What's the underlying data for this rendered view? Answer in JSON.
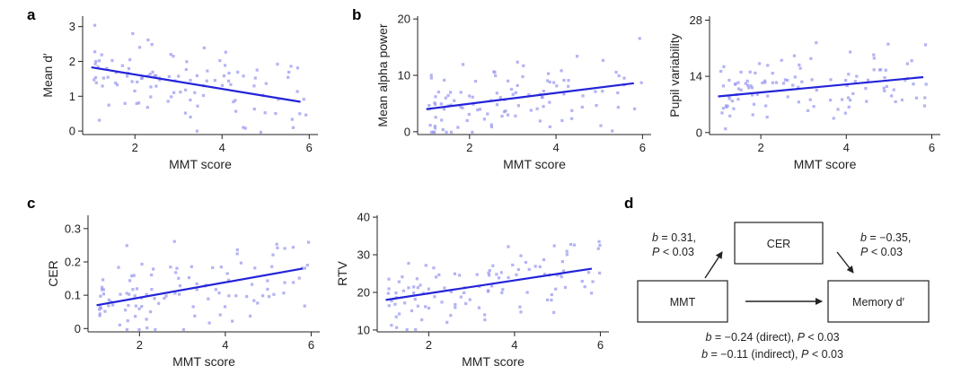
{
  "panel_letters": {
    "a": "a",
    "b": "b",
    "c": "c",
    "d": "d"
  },
  "chart_data": [
    {
      "id": "mean-d",
      "type": "scatter",
      "panel": "a",
      "xlabel": "MMT score",
      "ylabel": "Mean d′",
      "xlim": [
        0.8,
        6.2
      ],
      "ylim": [
        -0.1,
        3.3
      ],
      "xticks": [
        2,
        4,
        6
      ],
      "yticks": [
        0,
        1,
        2,
        3
      ],
      "regression": {
        "x": [
          1.0,
          5.8
        ],
        "y": [
          1.83,
          0.84
        ]
      },
      "n_points": 110,
      "seed": 11,
      "noise": 0.55
    },
    {
      "id": "alpha-power",
      "type": "scatter",
      "panel": "b",
      "xlabel": "MMT score",
      "ylabel": "Mean alpha power",
      "xlim": [
        0.8,
        6.2
      ],
      "ylim": [
        -0.5,
        20.5
      ],
      "xticks": [
        2,
        4,
        6
      ],
      "yticks": [
        0,
        10,
        20
      ],
      "regression": {
        "x": [
          1.0,
          5.8
        ],
        "y": [
          4.0,
          8.6
        ]
      },
      "n_points": 110,
      "seed": 23,
      "noise": 3.6
    },
    {
      "id": "pupil-variability",
      "type": "scatter",
      "panel": "b",
      "xlabel": "MMT score",
      "ylabel": "Pupil variability",
      "xlim": [
        0.8,
        6.2
      ],
      "ylim": [
        -0.5,
        29
      ],
      "xticks": [
        2,
        4,
        6
      ],
      "yticks": [
        0,
        14,
        28
      ],
      "regression": {
        "x": [
          1.0,
          5.8
        ],
        "y": [
          9.0,
          13.8
        ]
      },
      "n_points": 110,
      "seed": 37,
      "noise": 4.0
    },
    {
      "id": "cer",
      "type": "scatter",
      "panel": "c",
      "xlabel": "MMT score",
      "ylabel": "CER",
      "xlim": [
        0.8,
        6.2
      ],
      "ylim": [
        -0.01,
        0.34
      ],
      "xticks": [
        2,
        4,
        6
      ],
      "yticks": [
        0,
        0.1,
        0.2,
        0.3
      ],
      "regression": {
        "x": [
          1.0,
          5.8
        ],
        "y": [
          0.07,
          0.18
        ]
      },
      "n_points": 110,
      "seed": 41,
      "noise": 0.06
    },
    {
      "id": "rtv",
      "type": "scatter",
      "panel": "c",
      "xlabel": "MMT score",
      "ylabel": "RTV",
      "xlim": [
        0.8,
        6.2
      ],
      "ylim": [
        9.5,
        40.5
      ],
      "xticks": [
        2,
        4,
        6
      ],
      "yticks": [
        10,
        20,
        30,
        40
      ],
      "regression": {
        "x": [
          1.0,
          5.8
        ],
        "y": [
          18.0,
          26.3
        ]
      },
      "n_points": 110,
      "seed": 53,
      "noise": 5.0
    }
  ],
  "diagram": {
    "boxes": {
      "cer": "CER",
      "mmt": "MMT",
      "memory": "Memory d′"
    },
    "path_a": {
      "b": "b",
      "value": " = 0.31,",
      "p": "P",
      "p_value": " < 0.03"
    },
    "path_b": {
      "b": "b",
      "value": " = −0.35,",
      "p": "P",
      "p_value": " < 0.03"
    },
    "direct": {
      "b": "b",
      "value": " = −0.24 (direct), ",
      "p": "P",
      "p_value": " < 0.03"
    },
    "indirect": {
      "b": "b",
      "value": " = −0.11 (indirect), ",
      "p": "P",
      "p_value": " < 0.03"
    }
  }
}
